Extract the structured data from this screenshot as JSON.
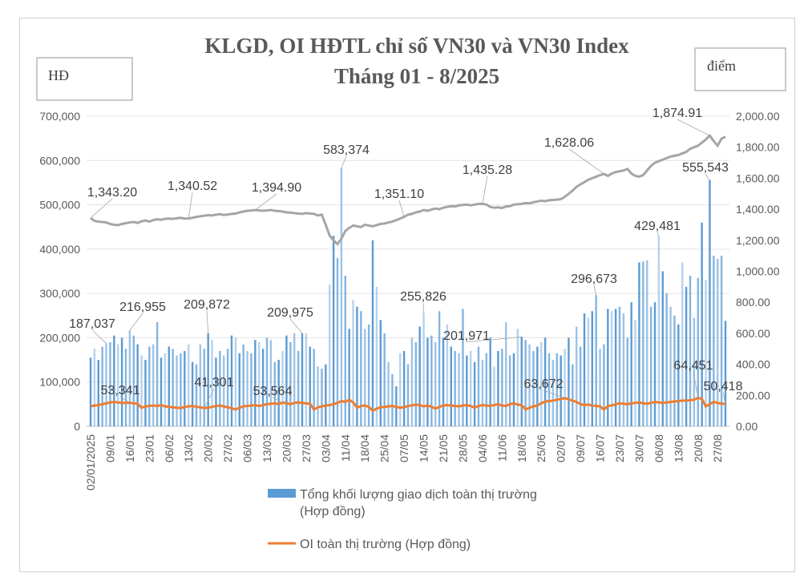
{
  "chart_data": {
    "type": "bar+line",
    "title": "KLGD, OI HĐTL chỉ số VN30 và VN30 Index",
    "subtitle": "Tháng 01 - 8/2025",
    "ylabel_left": "HĐ",
    "ylabel_right": "điểm",
    "ylim_left": [
      0,
      700000
    ],
    "ylim_right": [
      0,
      2000
    ],
    "left_ticks": [
      "0",
      "100,000",
      "200,000",
      "300,000",
      "400,000",
      "500,000",
      "600,000",
      "700,000"
    ],
    "right_ticks": [
      "0.00",
      "200.00",
      "400.00",
      "600.00",
      "800.00",
      "1,000.00",
      "1,200.00",
      "1,400.00",
      "1,600.00",
      "1,800.00",
      "2,000.00"
    ],
    "grid": true,
    "legend_position": "bottom",
    "x_tick_labels": [
      "02/01/2025",
      "09/01",
      "16/01",
      "23/01",
      "06/02",
      "13/02",
      "20/02",
      "27/02",
      "06/03",
      "13/03",
      "20/03",
      "27/03",
      "03/04",
      "11/04",
      "18/04",
      "25/04",
      "07/05",
      "14/05",
      "21/05",
      "28/05",
      "04/06",
      "11/06",
      "18/06",
      "25/06",
      "02/07",
      "09/07",
      "16/07",
      "23/07",
      "30/07",
      "06/08",
      "13/08",
      "20/08",
      "27/08"
    ],
    "x_tick_every_n_sessions": 5,
    "colors": {
      "volume": "#5B9BD5",
      "volume_light": "#9DC3E6",
      "oi": "#ED7D31",
      "index": "#A5A5A5"
    },
    "series": [
      {
        "name": "Tổng khối lượng giao dịch toàn thị trường (Hợp đồng)",
        "type": "bar",
        "axis": "left",
        "values": [
          155000,
          175000,
          150000,
          180000,
          187037,
          190000,
          205000,
          185000,
          200000,
          175000,
          216955,
          205000,
          185000,
          160000,
          150000,
          180000,
          185000,
          235000,
          155000,
          165000,
          180000,
          175000,
          160000,
          165000,
          170000,
          185000,
          145000,
          140000,
          185000,
          175000,
          209872,
          195000,
          155000,
          170000,
          160000,
          175000,
          205000,
          200000,
          165000,
          185000,
          170000,
          165000,
          195000,
          190000,
          175000,
          200000,
          195000,
          145000,
          150000,
          170000,
          205000,
          190000,
          210000,
          170000,
          209975,
          210000,
          180000,
          175000,
          135000,
          130000,
          140000,
          320000,
          430000,
          380000,
          583374,
          340000,
          220000,
          285000,
          270000,
          260000,
          220000,
          230000,
          420000,
          315000,
          240000,
          210000,
          145000,
          118000,
          90000,
          165000,
          170000,
          140000,
          200000,
          190000,
          225000,
          255826,
          200000,
          205000,
          190000,
          260000,
          200000,
          230000,
          180000,
          170000,
          165000,
          265000,
          160000,
          170000,
          145000,
          180000,
          150000,
          165000,
          200000,
          135000,
          170000,
          175000,
          235000,
          160000,
          165000,
          220000,
          201971,
          195000,
          185000,
          170000,
          180000,
          190000,
          200000,
          165000,
          150000,
          165000,
          160000,
          175000,
          200000,
          140000,
          225000,
          180000,
          255000,
          245000,
          260000,
          296673,
          175000,
          185000,
          265000,
          260000,
          265000,
          270000,
          255000,
          200000,
          280000,
          240000,
          370000,
          372000,
          375000,
          270000,
          280000,
          429481,
          350000,
          300000,
          270000,
          250000,
          230000,
          370000,
          315000,
          340000,
          245000,
          335000,
          460000,
          330000,
          555543,
          385000,
          378000,
          385000,
          238000
        ]
      },
      {
        "name": "OI toàn thị trường (Hợp đồng)",
        "type": "line",
        "axis": "left",
        "values": [
          45000,
          47000,
          48000,
          50000,
          52000,
          54000,
          55000,
          54000,
          53000,
          53000,
          53341,
          52000,
          51000,
          42000,
          45000,
          46000,
          47000,
          46000,
          48000,
          45000,
          44000,
          43000,
          42000,
          41000,
          44000,
          45000,
          46000,
          44000,
          43000,
          41301,
          42000,
          44000,
          46000,
          47000,
          45000,
          43000,
          41000,
          38000,
          42000,
          45000,
          46000,
          47000,
          48000,
          46000,
          48000,
          50000,
          51000,
          52000,
          50000,
          53564,
          52000,
          50000,
          53000,
          54000,
          53000,
          52000,
          51000,
          38000,
          43000,
          45000,
          47000,
          48000,
          50000,
          53000,
          57000,
          55000,
          60000,
          54000,
          42000,
          46000,
          47000,
          44000,
          35000,
          40000,
          43000,
          44000,
          45000,
          46000,
          44000,
          42000,
          43000,
          46000,
          47000,
          49000,
          48000,
          45000,
          47000,
          44000,
          40000,
          44000,
          47000,
          48000,
          47000,
          46000,
          45000,
          47000,
          48000,
          46000,
          42000,
          46000,
          48000,
          47000,
          46000,
          48000,
          50000,
          47000,
          46000,
          50000,
          52000,
          49000,
          48000,
          38000,
          42000,
          45000,
          47000,
          52000,
          56000,
          57000,
          58000,
          60000,
          62000,
          63672,
          61000,
          58000,
          55000,
          50000,
          48000,
          49000,
          47000,
          46000,
          45000,
          38000,
          46000,
          47000,
          50000,
          52000,
          51000,
          50000,
          52000,
          53000,
          54000,
          52000,
          51000,
          53000,
          55000,
          54000,
          53000,
          54000,
          55000,
          56000,
          57000,
          58000,
          58000,
          59000,
          60000,
          64451,
          62000,
          45000,
          50000,
          55000,
          53000,
          51000,
          50418
        ]
      },
      {
        "name": "VN30 Index",
        "type": "line",
        "axis": "right",
        "values": [
          1343.2,
          1325,
          1320,
          1318,
          1315,
          1305,
          1300,
          1298,
          1305,
          1310,
          1315,
          1318,
          1312,
          1322,
          1328,
          1320,
          1330,
          1335,
          1332,
          1338,
          1340,
          1338,
          1342,
          1345,
          1340,
          1340.52,
          1345,
          1350,
          1355,
          1358,
          1362,
          1360,
          1365,
          1368,
          1363,
          1366,
          1370,
          1372,
          1380,
          1385,
          1390,
          1392,
          1394.9,
          1393,
          1390,
          1392,
          1395,
          1390,
          1388,
          1385,
          1380,
          1378,
          1375,
          1372,
          1370,
          1375,
          1372,
          1370,
          1360,
          1365,
          1300,
          1230,
          1200,
          1175,
          1210,
          1260,
          1280,
          1295,
          1290,
          1285,
          1300,
          1295,
          1290,
          1298,
          1305,
          1308,
          1315,
          1320,
          1330,
          1340,
          1351.1,
          1365,
          1370,
          1380,
          1385,
          1395,
          1390,
          1398,
          1405,
          1400,
          1410,
          1415,
          1420,
          1418,
          1425,
          1428,
          1430,
          1425,
          1430,
          1435,
          1435.28,
          1430,
          1415,
          1410,
          1412,
          1408,
          1418,
          1420,
          1430,
          1432,
          1435,
          1440,
          1438,
          1445,
          1450,
          1455,
          1452,
          1458,
          1460,
          1462,
          1465,
          1480,
          1500,
          1520,
          1545,
          1560,
          1575,
          1590,
          1600,
          1610,
          1620,
          1628.06,
          1615,
          1630,
          1640,
          1645,
          1650,
          1660,
          1630,
          1615,
          1610,
          1620,
          1650,
          1680,
          1700,
          1710,
          1720,
          1730,
          1740,
          1745,
          1750,
          1760,
          1770,
          1790,
          1800,
          1810,
          1830,
          1850,
          1874.91,
          1840,
          1810,
          1855,
          1868
        ]
      }
    ],
    "data_labels": [
      {
        "series": 0,
        "session": 4,
        "text": "187,037"
      },
      {
        "series": 0,
        "session": 10,
        "text": "216,955"
      },
      {
        "series": 0,
        "session": 30,
        "text": "209,872"
      },
      {
        "series": 0,
        "session": 54,
        "text": "209,975"
      },
      {
        "series": 0,
        "session": 64,
        "text": "583,374"
      },
      {
        "series": 0,
        "session": 85,
        "text": "255,826"
      },
      {
        "series": 0,
        "session": 110,
        "text": "201,971"
      },
      {
        "series": 0,
        "session": 129,
        "text": "296,673"
      },
      {
        "series": 0,
        "session": 145,
        "text": "429,481"
      },
      {
        "series": 0,
        "session": 158,
        "text": "555,543"
      },
      {
        "series": 1,
        "session": 10,
        "text": "53,341"
      },
      {
        "series": 1,
        "session": 29,
        "text": "41,301"
      },
      {
        "series": 1,
        "session": 49,
        "text": "53,564"
      },
      {
        "series": 1,
        "session": 121,
        "text": "63,672"
      },
      {
        "series": 1,
        "session": 155,
        "text": "64,451"
      },
      {
        "series": 1,
        "session": 162,
        "text": "50,418"
      },
      {
        "series": 2,
        "session": 0,
        "text": "1,343.20"
      },
      {
        "series": 2,
        "session": 25,
        "text": "1,340.52"
      },
      {
        "series": 2,
        "session": 42,
        "text": "1,394.90"
      },
      {
        "series": 2,
        "session": 80,
        "text": "1,351.10"
      },
      {
        "series": 2,
        "session": 100,
        "text": "1,435.28"
      },
      {
        "series": 2,
        "session": 131,
        "text": "1,628.06"
      },
      {
        "series": 2,
        "session": 158,
        "text": "1,874.91"
      }
    ],
    "legend": [
      {
        "line1": "Tổng khối lượng giao dịch toàn thị trường",
        "line2": "(Hợp đồng)"
      },
      {
        "line1": "OI toàn thị trường (Hợp đồng)"
      }
    ]
  }
}
